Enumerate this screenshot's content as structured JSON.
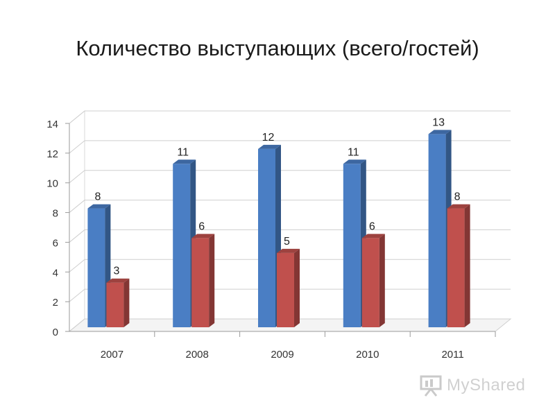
{
  "chart_data": {
    "type": "bar",
    "title": "Количество выступающих (всего/гостей)",
    "categories": [
      "2007",
      "2008",
      "2009",
      "2010",
      "2011"
    ],
    "series": [
      {
        "values": [
          8,
          11,
          12,
          11,
          13
        ],
        "color": "#4a7ec4"
      },
      {
        "values": [
          3,
          6,
          5,
          6,
          8
        ],
        "color": "#c0504d"
      }
    ],
    "ylim": [
      0,
      14
    ],
    "yticks": [
      0,
      2,
      4,
      6,
      8,
      10,
      12,
      14
    ],
    "grid": true,
    "legend": "none",
    "style": "3d-clustered-column"
  },
  "watermark": {
    "text": "MyShared"
  }
}
